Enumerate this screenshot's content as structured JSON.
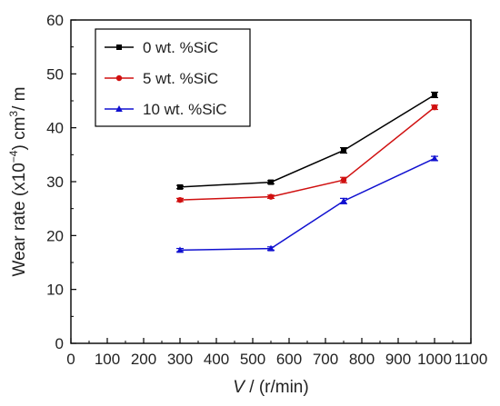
{
  "chart_data": {
    "type": "line",
    "x": [
      300,
      550,
      750,
      1000
    ],
    "series": [
      {
        "name": "0 wt. %SiC",
        "values": [
          29.0,
          29.9,
          35.8,
          46.1
        ],
        "errors": [
          0.3,
          0.3,
          0.5,
          0.5
        ],
        "color": "#000000",
        "marker": "square"
      },
      {
        "name": "5 wt. %SiC",
        "values": [
          26.6,
          27.2,
          30.3,
          43.8
        ],
        "errors": [
          0.3,
          0.3,
          0.5,
          0.4
        ],
        "color": "#d01010",
        "marker": "circle"
      },
      {
        "name": "10 wt. %SiC",
        "values": [
          17.3,
          17.6,
          26.4,
          34.3
        ],
        "errors": [
          0.3,
          0.3,
          0.5,
          0.4
        ],
        "color": "#1010d0",
        "marker": "triangle"
      }
    ],
    "xlabel_var": "V",
    "xlabel_unit": " / (r/min)",
    "ylabel_prefix": "Wear rate (x10",
    "ylabel_exp": "−4",
    "ylabel_mid": ") cm",
    "ylabel_exp2": "3",
    "ylabel_suffix": "/ m",
    "xlim": [
      0,
      1100
    ],
    "ylim": [
      0,
      60
    ],
    "xticks": [
      "0",
      "100",
      "200",
      "300",
      "400",
      "500",
      "600",
      "700",
      "800",
      "900",
      "1000",
      "1100"
    ],
    "yticks": [
      "0",
      "10",
      "20",
      "30",
      "40",
      "50",
      "60"
    ],
    "grid": false,
    "legend_position": "top-left"
  }
}
